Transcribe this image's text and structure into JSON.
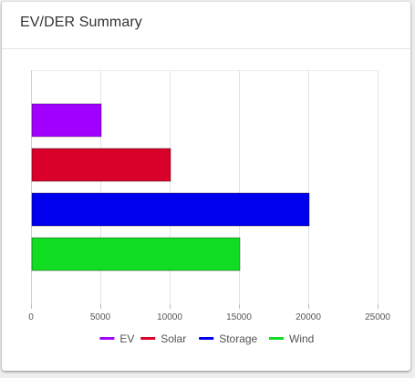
{
  "card": {
    "title": "EV/DER Summary"
  },
  "chart_data": {
    "type": "bar",
    "orientation": "horizontal",
    "categories": [
      "EV",
      "Solar",
      "Storage",
      "Wind"
    ],
    "values": [
      5000,
      10000,
      20000,
      15000
    ],
    "colors": [
      "#a100ff",
      "#d9002a",
      "#0000ee",
      "#11dd22"
    ],
    "xlim": [
      0,
      25000
    ],
    "xticks": [
      0,
      5000,
      10000,
      15000,
      20000,
      25000
    ],
    "grid": true,
    "legend": {
      "position": "bottom",
      "entries": [
        "EV",
        "Solar",
        "Storage",
        "Wind"
      ]
    }
  }
}
